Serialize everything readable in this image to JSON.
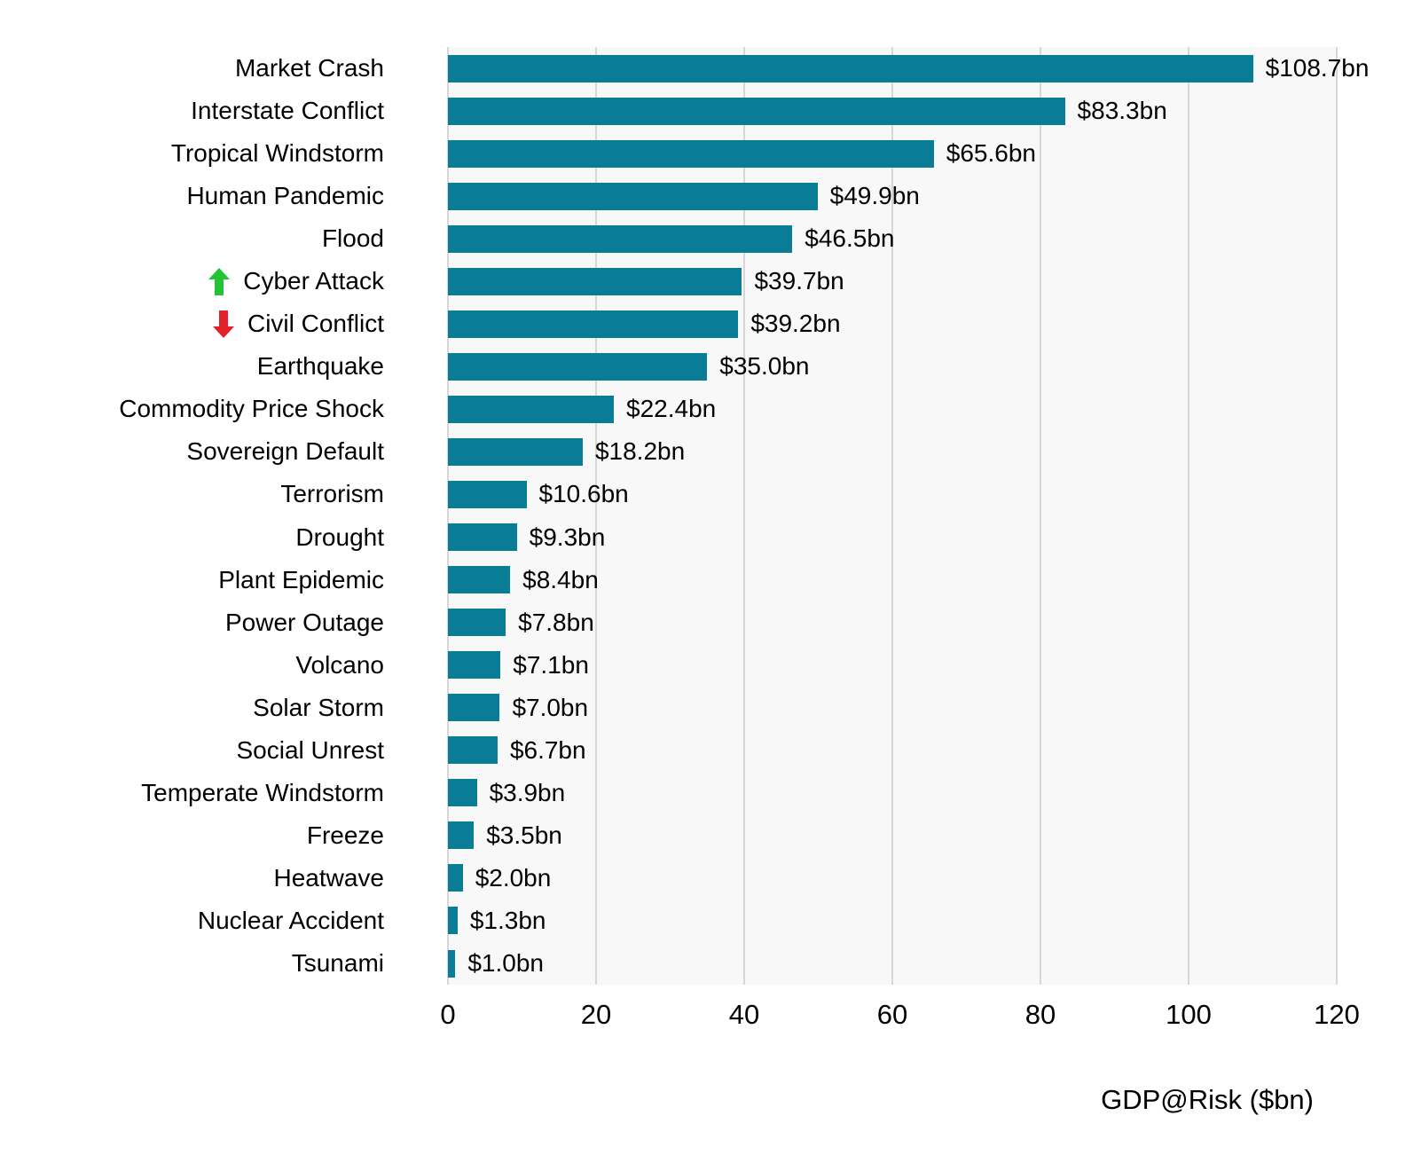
{
  "chart_data": {
    "type": "bar",
    "orientation": "horizontal",
    "title": "",
    "xlabel": "GDP@Risk ($bn)",
    "ylabel": "",
    "xlim": [
      0,
      120
    ],
    "grid": "vertical",
    "x_ticks": [
      0,
      20,
      40,
      60,
      80,
      100,
      120
    ],
    "x_tick_labels": [
      "0",
      "20",
      "40",
      "60",
      "80",
      "100",
      "120"
    ],
    "categories": [
      "Market Crash",
      "Interstate Conflict",
      "Tropical Windstorm",
      "Human Pandemic",
      "Flood",
      "Cyber Attack",
      "Civil Conflict",
      "Earthquake",
      "Commodity Price Shock",
      "Sovereign Default",
      "Terrorism",
      "Drought",
      "Plant Epidemic",
      "Power Outage",
      "Volcano",
      "Solar Storm",
      "Social Unrest",
      "Temperate Windstorm",
      "Freeze",
      "Heatwave",
      "Nuclear Accident",
      "Tsunami"
    ],
    "values": [
      108.7,
      83.3,
      65.6,
      49.9,
      46.5,
      39.7,
      39.2,
      35.0,
      22.4,
      18.2,
      10.6,
      9.3,
      8.4,
      7.8,
      7.1,
      7.0,
      6.7,
      3.9,
      3.5,
      2.0,
      1.3,
      1.0
    ],
    "value_labels": [
      "$108.7bn",
      "$83.3bn",
      "$65.6bn",
      "$49.9bn",
      "$46.5bn",
      "$39.7bn",
      "$39.2bn",
      "$35.0bn",
      "$22.4bn",
      "$18.2bn",
      "$10.6bn",
      "$9.3bn",
      "$8.4bn",
      "$7.8bn",
      "$7.1bn",
      "$7.0bn",
      "$6.7bn",
      "$3.9bn",
      "$3.5bn",
      "$2.0bn",
      "$1.3bn",
      "$1.0bn"
    ],
    "trend_markers": [
      "none",
      "none",
      "none",
      "none",
      "none",
      "up",
      "down",
      "none",
      "none",
      "none",
      "none",
      "none",
      "none",
      "none",
      "none",
      "none",
      "none",
      "none",
      "none",
      "none",
      "none",
      "none"
    ]
  },
  "axis": {
    "title": "GDP@Risk ($bn)"
  },
  "colors": {
    "bar": "#0a7d96",
    "plot_background": "#f8f8f8",
    "gridline": "#d7d7d7",
    "up_arrow": "#24c334",
    "down_arrow": "#e32128",
    "text": "#000000"
  }
}
